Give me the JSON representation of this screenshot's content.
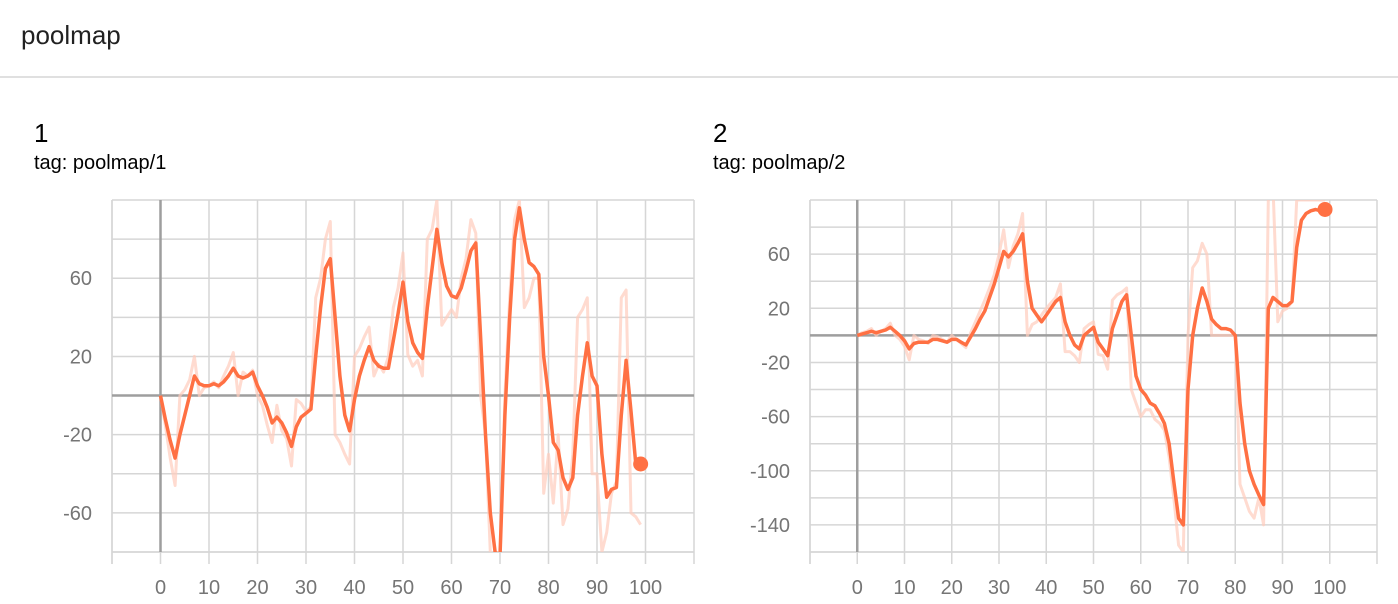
{
  "header": {
    "title": "poolmap"
  },
  "colors": {
    "line": "#ff7043",
    "raw": "#ffccbc",
    "grid": "#d6d6d6",
    "axis": "#9e9e9e"
  },
  "charts": [
    {
      "title": "1",
      "tag": "tag: poolmap/1"
    },
    {
      "title": "2",
      "tag": "tag: poolmap/2"
    }
  ],
  "chart_data": [
    {
      "type": "line",
      "title": "1",
      "subtitle": "tag: poolmap/1",
      "xlabel": "",
      "ylabel": "",
      "xlim": [
        -10,
        110
      ],
      "ylim": [
        -80,
        100
      ],
      "xticks": [
        0,
        10,
        20,
        30,
        40,
        50,
        60,
        70,
        80,
        90,
        100
      ],
      "yticks": [
        -60,
        -20,
        20,
        60
      ],
      "grid": true,
      "series": [
        {
          "role": "smoothed",
          "x": [
            0,
            1,
            2,
            3,
            4,
            5,
            6,
            7,
            8,
            9,
            10,
            11,
            12,
            13,
            14,
            15,
            16,
            17,
            18,
            19,
            20,
            21,
            22,
            23,
            24,
            25,
            26,
            27,
            28,
            29,
            30,
            31,
            32,
            33,
            34,
            35,
            36,
            37,
            38,
            39,
            40,
            41,
            42,
            43,
            44,
            45,
            46,
            47,
            48,
            49,
            50,
            51,
            52,
            53,
            54,
            55,
            56,
            57,
            58,
            59,
            60,
            61,
            62,
            63,
            64,
            65,
            66,
            67,
            68,
            69,
            70,
            71,
            72,
            73,
            74,
            75,
            76,
            77,
            78,
            79,
            80,
            81,
            82,
            83,
            84,
            85,
            86,
            87,
            88,
            89,
            90,
            91,
            92,
            93,
            94,
            95,
            96,
            97,
            98,
            99
          ],
          "y": [
            0,
            -12,
            -23,
            -32,
            -20,
            -10,
            0,
            10,
            6,
            5,
            5,
            6,
            5,
            7,
            10,
            14,
            10,
            9,
            10,
            12,
            5,
            0,
            -6,
            -14,
            -11,
            -14,
            -19,
            -26,
            -16,
            -11,
            -9,
            -7,
            20,
            45,
            65,
            70,
            40,
            10,
            -10,
            -18,
            -2,
            10,
            18,
            25,
            18,
            15,
            14,
            14,
            28,
            42,
            58,
            38,
            27,
            22,
            19,
            45,
            65,
            85,
            68,
            56,
            51,
            50,
            55,
            64,
            74,
            78,
            30,
            -20,
            -60,
            -80,
            -82,
            -10,
            40,
            80,
            96,
            80,
            68,
            66,
            62,
            20,
            0,
            -24,
            -28,
            -42,
            -48,
            -42,
            -10,
            10,
            27,
            10,
            5,
            -30,
            -52,
            -48,
            -47,
            -10,
            18,
            -8,
            -35,
            -35
          ]
        },
        {
          "role": "raw",
          "x": [
            0,
            1,
            2,
            3,
            4,
            5,
            6,
            7,
            8,
            9,
            10,
            11,
            12,
            13,
            14,
            15,
            16,
            17,
            18,
            19,
            20,
            21,
            22,
            23,
            24,
            25,
            26,
            27,
            28,
            29,
            30,
            31,
            32,
            33,
            34,
            35,
            36,
            37,
            38,
            39,
            40,
            41,
            42,
            43,
            44,
            45,
            46,
            47,
            48,
            49,
            50,
            51,
            52,
            53,
            54,
            55,
            56,
            57,
            58,
            59,
            60,
            61,
            62,
            63,
            64,
            65,
            66,
            67,
            68,
            69,
            70,
            71,
            72,
            73,
            74,
            75,
            76,
            77,
            78,
            79,
            80,
            81,
            82,
            83,
            84,
            85,
            86,
            87,
            88,
            89,
            90,
            91,
            92,
            93,
            94,
            95,
            96,
            97,
            98,
            99
          ],
          "y": [
            0,
            -15,
            -32,
            -46,
            0,
            3,
            8,
            20,
            0,
            4,
            5,
            7,
            4,
            10,
            15,
            22,
            0,
            12,
            10,
            13,
            0,
            -5,
            -15,
            -24,
            -5,
            -18,
            -22,
            -36,
            -2,
            -4,
            -8,
            -6,
            50,
            60,
            80,
            89,
            -20,
            -24,
            -30,
            -35,
            20,
            24,
            30,
            35,
            10,
            16,
            12,
            20,
            45,
            55,
            73,
            21,
            15,
            18,
            10,
            80,
            85,
            100,
            36,
            40,
            44,
            40,
            60,
            70,
            90,
            83,
            0,
            -20,
            -80,
            -85,
            -85,
            0,
            50,
            90,
            100,
            45,
            50,
            60,
            60,
            -50,
            -30,
            -55,
            -20,
            -66,
            -58,
            -30,
            40,
            44,
            50,
            -40,
            -40,
            -80,
            -70,
            -50,
            -44,
            50,
            54,
            -60,
            -62,
            -66
          ]
        }
      ],
      "last_point": {
        "x": 99,
        "y": -35
      }
    },
    {
      "type": "line",
      "title": "2",
      "subtitle": "tag: poolmap/2",
      "xlabel": "",
      "ylabel": "",
      "xlim": [
        -10,
        110
      ],
      "ylim": [
        -160,
        100
      ],
      "xticks": [
        0,
        10,
        20,
        30,
        40,
        50,
        60,
        70,
        80,
        90,
        100
      ],
      "yticks": [
        -140,
        -100,
        -60,
        -20,
        20,
        60
      ],
      "grid": true,
      "series": [
        {
          "role": "smoothed",
          "x": [
            0,
            1,
            2,
            3,
            4,
            5,
            6,
            7,
            8,
            9,
            10,
            11,
            12,
            13,
            14,
            15,
            16,
            17,
            18,
            19,
            20,
            21,
            22,
            23,
            24,
            25,
            26,
            27,
            28,
            29,
            30,
            31,
            32,
            33,
            34,
            35,
            36,
            37,
            38,
            39,
            40,
            41,
            42,
            43,
            44,
            45,
            46,
            47,
            48,
            49,
            50,
            51,
            52,
            53,
            54,
            55,
            56,
            57,
            58,
            59,
            60,
            61,
            62,
            63,
            64,
            65,
            66,
            67,
            68,
            69,
            70,
            71,
            72,
            73,
            74,
            75,
            76,
            77,
            78,
            79,
            80,
            81,
            82,
            83,
            84,
            85,
            86,
            87,
            88,
            89,
            90,
            91,
            92,
            93,
            94,
            95,
            96,
            97,
            98,
            99
          ],
          "y": [
            0,
            1,
            2,
            3,
            2,
            3,
            4,
            6,
            3,
            0,
            -4,
            -10,
            -6,
            -5,
            -5,
            -5,
            -3,
            -3,
            -4,
            -5,
            -3,
            -3,
            -5,
            -7,
            -1,
            5,
            12,
            18,
            28,
            38,
            50,
            62,
            58,
            62,
            68,
            75,
            40,
            20,
            15,
            10,
            15,
            20,
            25,
            28,
            10,
            0,
            -7,
            -10,
            0,
            3,
            6,
            -5,
            -10,
            -15,
            5,
            15,
            25,
            30,
            0,
            -30,
            -40,
            -44,
            -50,
            -52,
            -58,
            -65,
            -80,
            -108,
            -135,
            -140,
            -40,
            0,
            20,
            35,
            25,
            12,
            8,
            5,
            5,
            4,
            0,
            -50,
            -80,
            -100,
            -110,
            -118,
            -125,
            20,
            28,
            25,
            22,
            22,
            25,
            65,
            85,
            90,
            92,
            93,
            92,
            93
          ]
        },
        {
          "role": "raw",
          "x": [
            0,
            1,
            2,
            3,
            4,
            5,
            6,
            7,
            8,
            9,
            10,
            11,
            12,
            13,
            14,
            15,
            16,
            17,
            18,
            19,
            20,
            21,
            22,
            23,
            24,
            25,
            26,
            27,
            28,
            29,
            30,
            31,
            32,
            33,
            34,
            35,
            36,
            37,
            38,
            39,
            40,
            41,
            42,
            43,
            44,
            45,
            46,
            47,
            48,
            49,
            50,
            51,
            52,
            53,
            54,
            55,
            56,
            57,
            58,
            59,
            60,
            61,
            62,
            63,
            64,
            65,
            66,
            67,
            68,
            69,
            70,
            71,
            72,
            73,
            74,
            75,
            76,
            77,
            78,
            79,
            80,
            81,
            82,
            83,
            84,
            85,
            86,
            87,
            88,
            89,
            90,
            91,
            92,
            93,
            94,
            95,
            96,
            97,
            98,
            99
          ],
          "y": [
            0,
            2,
            3,
            5,
            0,
            3,
            5,
            9,
            0,
            -3,
            -8,
            -18,
            0,
            -3,
            -4,
            -6,
            0,
            -1,
            -3,
            -5,
            0,
            -3,
            -6,
            -9,
            2,
            10,
            18,
            26,
            35,
            45,
            60,
            78,
            50,
            66,
            75,
            90,
            0,
            8,
            10,
            15,
            20,
            24,
            28,
            38,
            -12,
            -12,
            -15,
            -20,
            5,
            8,
            10,
            -14,
            -15,
            -25,
            26,
            30,
            32,
            35,
            -40,
            -50,
            -60,
            -55,
            -55,
            -62,
            -65,
            -70,
            -90,
            -120,
            -155,
            -160,
            0,
            50,
            55,
            68,
            60,
            0,
            0,
            0,
            0,
            0,
            0,
            -110,
            -120,
            -130,
            -135,
            -120,
            -140,
            100,
            110,
            10,
            18,
            20,
            25,
            100,
            100,
            100,
            100,
            100,
            100,
            100
          ]
        }
      ],
      "last_point": {
        "x": 99,
        "y": 93
      }
    }
  ]
}
